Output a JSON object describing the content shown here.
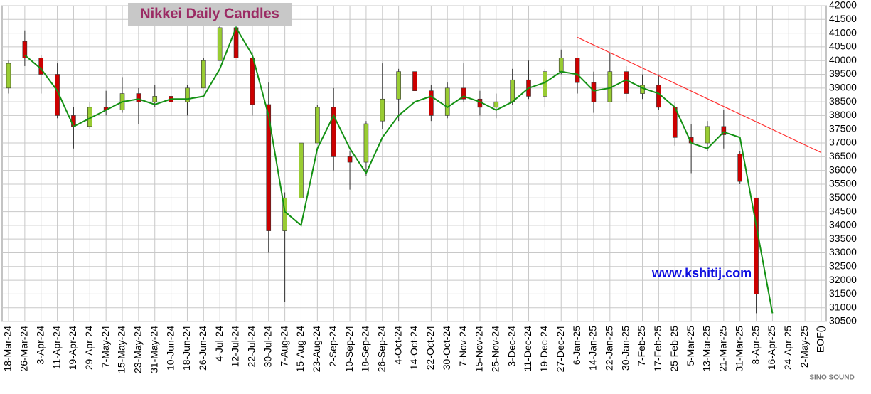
{
  "chart_data": {
    "type": "candlestick",
    "title": "Nikkei Daily Candles",
    "annotation": "www.kshitij.com",
    "logo": "SINO SOUND",
    "categories": [
      "18-Mar-24",
      "26-Mar-24",
      "3-Apr-24",
      "11-Apr-24",
      "19-Apr-24",
      "29-Apr-24",
      "7-May-24",
      "15-May-24",
      "23-May-24",
      "31-May-24",
      "10-Jun-24",
      "18-Jun-24",
      "26-Jun-24",
      "4-Jul-24",
      "12-Jul-24",
      "22-Jul-24",
      "30-Jul-24",
      "7-Aug-24",
      "15-Aug-24",
      "23-Aug-24",
      "2-Sep-24",
      "10-Sep-24",
      "18-Sep-24",
      "26-Sep-24",
      "4-Oct-24",
      "14-Oct-24",
      "22-Oct-24",
      "30-Oct-24",
      "7-Nov-24",
      "15-Nov-24",
      "25-Nov-24",
      "3-Dec-24",
      "11-Dec-24",
      "19-Dec-24",
      "27-Dec-24",
      "6-Jan-25",
      "14-Jan-25",
      "22-Jan-25",
      "30-Jan-25",
      "7-Feb-25",
      "17-Feb-25",
      "25-Feb-25",
      "5-Mar-25",
      "13-Mar-25",
      "21-Mar-25",
      "31-Mar-25",
      "8-Apr-25",
      "16-Apr-25",
      "24-Apr-25",
      "2-May-25",
      "EOF()"
    ],
    "open": [
      39000,
      40700,
      40100,
      39500,
      38000,
      37600,
      38300,
      38200,
      38800,
      38500,
      38700,
      38500,
      39000,
      40000,
      41200,
      40100,
      38400,
      33800,
      35000,
      37000,
      38300,
      36500,
      36300,
      37800,
      38600,
      39600,
      38900,
      38000,
      39000,
      38600,
      38300,
      38500,
      39300,
      38700,
      39600,
      40100,
      39200,
      38500,
      39600,
      38800,
      39100,
      38300,
      37200,
      37000,
      37600,
      36600,
      35000,
      null,
      null,
      null,
      null
    ],
    "high": [
      40000,
      41100,
      40200,
      39900,
      38300,
      38500,
      38900,
      39400,
      39000,
      39100,
      39400,
      39100,
      40100,
      41500,
      41900,
      40300,
      39200,
      35200,
      37000,
      38400,
      39000,
      36700,
      37800,
      39900,
      39700,
      40200,
      39100,
      39200,
      39900,
      38900,
      38800,
      39700,
      40000,
      39700,
      40400,
      40100,
      39600,
      40300,
      39800,
      39500,
      39500,
      38500,
      37700,
      37800,
      38200,
      36700,
      35000,
      null,
      null,
      null,
      null
    ],
    "low": [
      38800,
      39800,
      38800,
      37900,
      36800,
      37500,
      38000,
      38100,
      37700,
      38300,
      38000,
      38000,
      39000,
      40000,
      40100,
      38000,
      33000,
      31200,
      34500,
      37000,
      36000,
      35300,
      35800,
      37500,
      37800,
      38900,
      37800,
      37900,
      38500,
      38000,
      37900,
      38400,
      38600,
      38300,
      39500,
      38800,
      38100,
      38500,
      38500,
      38600,
      38200,
      36900,
      35900,
      36700,
      36800,
      35500,
      30800,
      null,
      null,
      null,
      null
    ],
    "close": [
      39900,
      40100,
      39500,
      38000,
      37600,
      38300,
      38200,
      38800,
      38500,
      38700,
      38500,
      39000,
      40000,
      41200,
      40100,
      38400,
      33800,
      35000,
      37000,
      38300,
      36500,
      36300,
      37700,
      38600,
      39600,
      38900,
      38000,
      39000,
      38600,
      38300,
      38500,
      39300,
      38700,
      39600,
      40100,
      39200,
      38500,
      39600,
      38800,
      39100,
      38300,
      37200,
      37000,
      37600,
      37300,
      35600,
      31500,
      null,
      null,
      null,
      null
    ],
    "up_color": "#99cc33",
    "down_color": "#cc0000",
    "moving_average": {
      "color": "#139113",
      "values": [
        null,
        40200,
        39700,
        38900,
        37600,
        37900,
        38200,
        38500,
        38600,
        38400,
        38600,
        38600,
        38700,
        39700,
        41200,
        40200,
        38000,
        34500,
        34000,
        36800,
        38000,
        36800,
        35900,
        37200,
        38000,
        38500,
        38700,
        38300,
        38700,
        38500,
        38200,
        38500,
        39000,
        39200,
        39600,
        39500,
        38900,
        39000,
        39300,
        39000,
        38800,
        38300,
        37000,
        36800,
        37400,
        37200,
        34000,
        30800,
        null,
        null,
        null
      ]
    },
    "trendline": {
      "color": "#ff3030",
      "from": [
        "6-Jan-25",
        40850
      ],
      "to": [
        "EOF()",
        36650
      ]
    },
    "ylim": [
      30500,
      42000
    ],
    "yticks": [
      30500,
      31000,
      31500,
      32000,
      32500,
      33000,
      33500,
      34000,
      34500,
      35000,
      35500,
      36000,
      36500,
      37000,
      37500,
      38000,
      38500,
      39000,
      39500,
      40000,
      40500,
      41000,
      41500,
      42000
    ],
    "grid": true
  }
}
